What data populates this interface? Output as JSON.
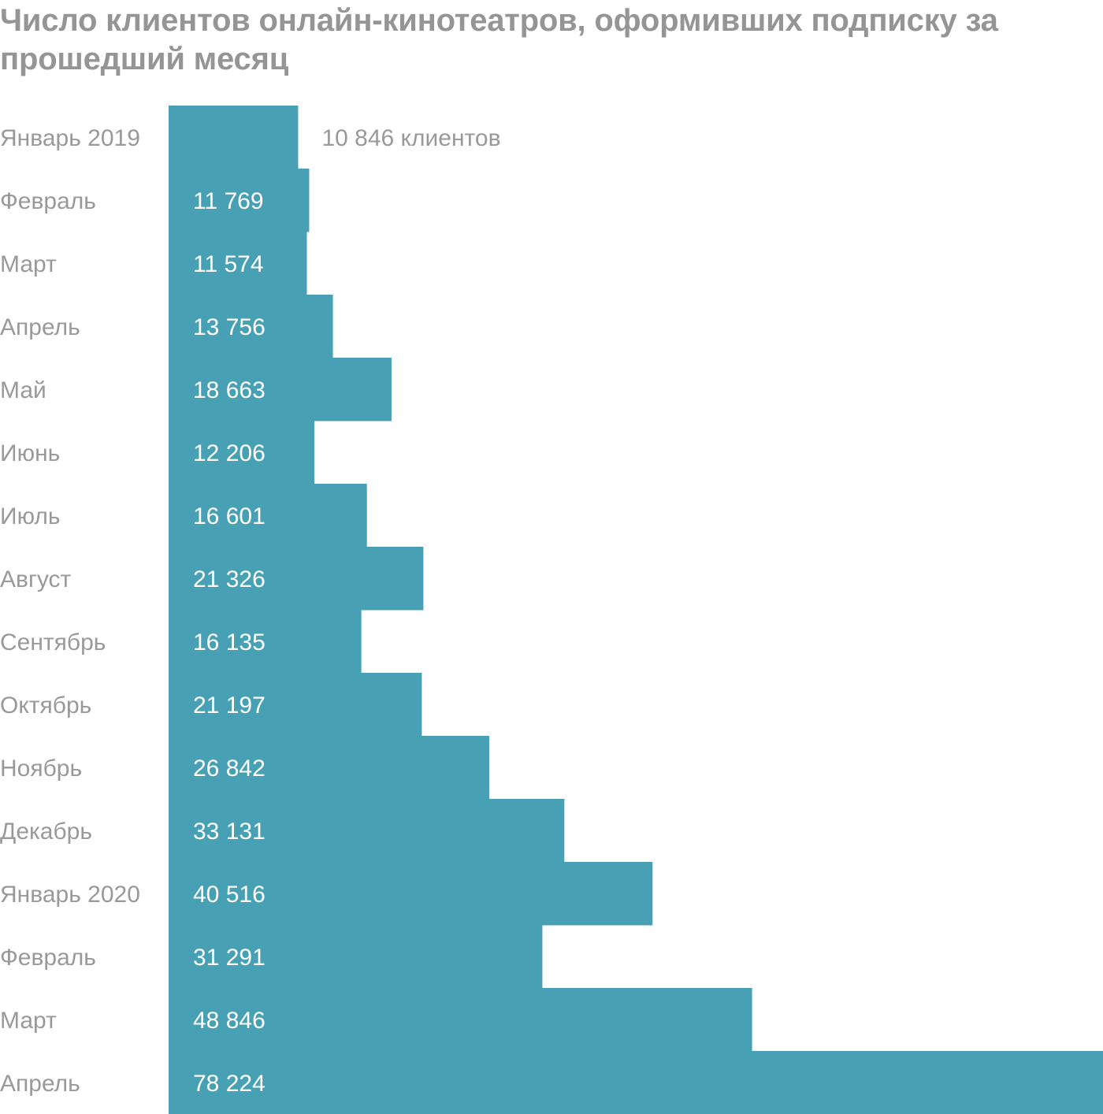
{
  "title": "Число клиентов онлайн-кинотеатров, оформивших подписку за прошедший месяц",
  "colors": {
    "bar": "#48a0b5",
    "title": "#959595",
    "label": "#999999",
    "value_inside": "#ffffff"
  },
  "chart_data": {
    "type": "bar",
    "orientation": "horizontal",
    "title": "Число клиентов онлайн-кинотеатров, оформивших подписку за прошедший месяц",
    "xlabel": "",
    "ylabel": "",
    "grid": false,
    "legend": "none",
    "xlim": [
      0,
      78224
    ],
    "categories": [
      "Январь 2019",
      "Февраль",
      "Март",
      "Апрель",
      "Май",
      "Июнь",
      "Июль",
      "Август",
      "Сентябрь",
      "Октябрь",
      "Ноябрь",
      "Декабрь",
      "Январь 2020",
      "Февраль",
      "Март",
      "Апрель"
    ],
    "values": [
      10846,
      11769,
      11574,
      13756,
      18663,
      12206,
      16601,
      21326,
      16135,
      21197,
      26842,
      33131,
      40516,
      31291,
      48846,
      78224
    ],
    "value_labels": [
      "10 846 клиентов",
      "11 769",
      "11 574",
      "13 756",
      "18 663",
      "12 206",
      "16 601",
      "21 326",
      "16 135",
      "21 197",
      "26 842",
      "33 131",
      "40 516",
      "31 291",
      "48 846",
      "78 224"
    ]
  }
}
